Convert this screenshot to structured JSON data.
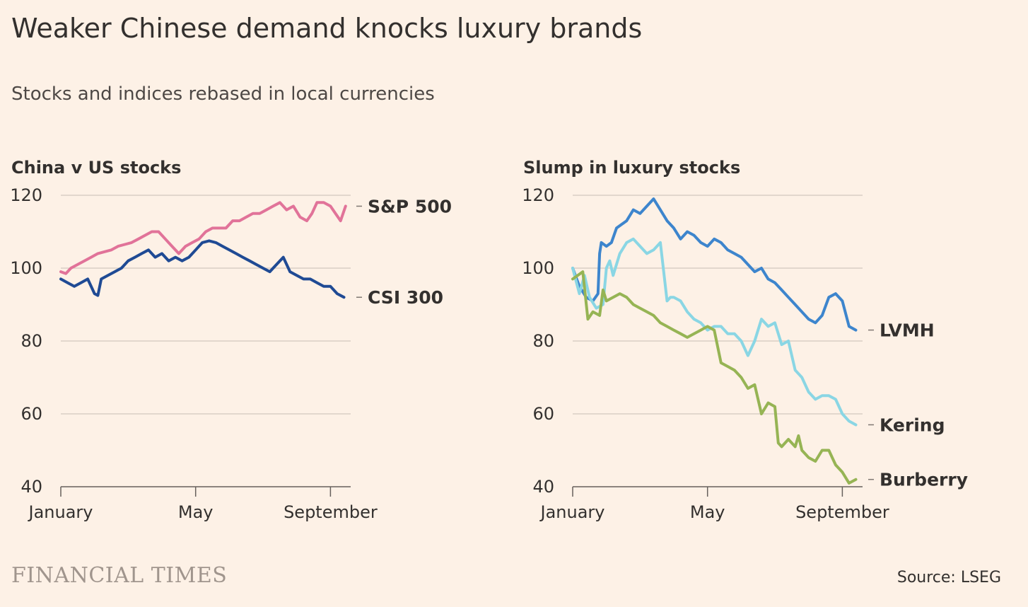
{
  "title": "Weaker Chinese demand knocks luxury brands",
  "subtitle": "Stocks and indices rebased in local currencies",
  "source": "Source: LSEG",
  "logo_text": "FINANCIAL TIMES",
  "colors": {
    "background": "#fdf1e6",
    "grid": "#d2c8be",
    "text": "#33302e",
    "sp500": "#e17399",
    "csi300": "#1f4a94",
    "lvmh": "#3d85cd",
    "kering": "#8ad6e4",
    "burberry": "#96b454"
  },
  "chart_data": [
    {
      "type": "line",
      "title": "China v US stocks",
      "ylim": [
        40,
        120
      ],
      "yticks": [
        120,
        100,
        80,
        60,
        40
      ],
      "xlim": [
        0,
        8.6
      ],
      "xticks": [
        {
          "value": 0,
          "label": "January"
        },
        {
          "value": 4,
          "label": "May"
        },
        {
          "value": 8,
          "label": "September"
        }
      ],
      "grid": true,
      "legend": "direct labels at line ends",
      "series": [
        {
          "name": "S&P 500",
          "color": "#e17399",
          "x": [
            0,
            0.15,
            0.3,
            0.5,
            0.7,
            0.9,
            1.1,
            1.3,
            1.5,
            1.7,
            1.9,
            2.1,
            2.3,
            2.5,
            2.7,
            2.9,
            3.1,
            3.3,
            3.5,
            3.7,
            3.9,
            4.1,
            4.3,
            4.5,
            4.7,
            4.9,
            5.1,
            5.3,
            5.5,
            5.7,
            5.9,
            6.1,
            6.3,
            6.5,
            6.7,
            6.9,
            7.1,
            7.3,
            7.45,
            7.6,
            7.8,
            8.0,
            8.15,
            8.3,
            8.45
          ],
          "y": [
            99,
            98.5,
            100,
            101,
            102,
            103,
            104,
            104.5,
            105,
            106,
            106.5,
            107,
            108,
            109,
            110,
            110,
            108,
            106,
            104,
            106,
            107,
            108,
            110,
            111,
            111,
            111,
            113,
            113,
            114,
            115,
            115,
            116,
            117,
            118,
            116,
            117,
            114,
            113,
            115,
            118,
            118,
            117,
            115,
            113,
            117
          ]
        },
        {
          "name": "CSI 300",
          "color": "#1f4a94",
          "x": [
            0,
            0.2,
            0.4,
            0.6,
            0.8,
            1.0,
            1.1,
            1.2,
            1.4,
            1.6,
            1.8,
            2.0,
            2.2,
            2.4,
            2.6,
            2.8,
            3.0,
            3.2,
            3.4,
            3.6,
            3.8,
            4.0,
            4.2,
            4.4,
            4.6,
            4.8,
            5.0,
            5.2,
            5.4,
            5.6,
            5.8,
            6.0,
            6.2,
            6.4,
            6.6,
            6.8,
            7.0,
            7.2,
            7.4,
            7.6,
            7.8,
            8.0,
            8.2,
            8.4
          ],
          "y": [
            97,
            96,
            95,
            96,
            97,
            93,
            92.5,
            97,
            98,
            99,
            100,
            102,
            103,
            104,
            105,
            103,
            104,
            102,
            103,
            102,
            103,
            105,
            107,
            107.5,
            107,
            106,
            105,
            104,
            103,
            102,
            101,
            100,
            99,
            101,
            103,
            99,
            98,
            97,
            97,
            96,
            95,
            95,
            93,
            92
          ]
        }
      ]
    },
    {
      "type": "line",
      "title": "Slump in luxury stocks",
      "ylim": [
        40,
        120
      ],
      "yticks": [
        120,
        100,
        80,
        60,
        40
      ],
      "xlim": [
        0,
        8.6
      ],
      "xticks": [
        {
          "value": 0,
          "label": "January"
        },
        {
          "value": 4,
          "label": "May"
        },
        {
          "value": 8,
          "label": "September"
        }
      ],
      "grid": true,
      "legend": "direct labels at line ends",
      "series": [
        {
          "name": "LVMH",
          "color": "#3d85cd",
          "x": [
            0,
            0.2,
            0.4,
            0.6,
            0.75,
            0.8,
            0.85,
            1.0,
            1.15,
            1.3,
            1.45,
            1.6,
            1.8,
            2.0,
            2.2,
            2.4,
            2.6,
            2.8,
            3.0,
            3.2,
            3.4,
            3.6,
            3.8,
            4.0,
            4.2,
            4.4,
            4.6,
            4.8,
            5.0,
            5.2,
            5.4,
            5.6,
            5.8,
            6.0,
            6.2,
            6.4,
            6.6,
            6.8,
            7.0,
            7.2,
            7.4,
            7.6,
            7.8,
            8.0,
            8.2,
            8.4
          ],
          "y": [
            100,
            95,
            92,
            91,
            93,
            104,
            107,
            106,
            107,
            111,
            112,
            113,
            116,
            115,
            117,
            119,
            116,
            113,
            111,
            108,
            110,
            109,
            107,
            106,
            108,
            107,
            105,
            104,
            103,
            101,
            99,
            100,
            97,
            96,
            94,
            92,
            90,
            88,
            86,
            85,
            87,
            92,
            93,
            91,
            84,
            83
          ]
        },
        {
          "name": "Kering",
          "color": "#8ad6e4",
          "x": [
            0,
            0.2,
            0.35,
            0.5,
            0.7,
            0.9,
            1.0,
            1.1,
            1.2,
            1.4,
            1.6,
            1.8,
            2.0,
            2.2,
            2.4,
            2.6,
            2.8,
            2.9,
            3.0,
            3.2,
            3.4,
            3.6,
            3.8,
            4.0,
            4.2,
            4.4,
            4.6,
            4.8,
            5.0,
            5.2,
            5.4,
            5.6,
            5.8,
            6.0,
            6.2,
            6.4,
            6.6,
            6.8,
            7.0,
            7.2,
            7.4,
            7.6,
            7.8,
            8.0,
            8.2,
            8.4
          ],
          "y": [
            100,
            93,
            98,
            92,
            89,
            90,
            100,
            102,
            98,
            104,
            107,
            108,
            106,
            104,
            105,
            107,
            91,
            92,
            92,
            91,
            88,
            86,
            85,
            83,
            84,
            84,
            82,
            82,
            80,
            76,
            80,
            86,
            84,
            85,
            79,
            80,
            72,
            70,
            66,
            64,
            65,
            65,
            64,
            60,
            58,
            57
          ]
        },
        {
          "name": "Burberry",
          "color": "#96b454",
          "x": [
            0,
            0.15,
            0.3,
            0.45,
            0.6,
            0.8,
            0.9,
            1.0,
            1.2,
            1.4,
            1.6,
            1.8,
            2.0,
            2.2,
            2.4,
            2.6,
            2.8,
            3.0,
            3.2,
            3.4,
            3.6,
            3.8,
            4.0,
            4.2,
            4.4,
            4.6,
            4.8,
            5.0,
            5.2,
            5.4,
            5.6,
            5.8,
            6.0,
            6.1,
            6.2,
            6.4,
            6.6,
            6.7,
            6.8,
            7.0,
            7.2,
            7.4,
            7.6,
            7.8,
            8.0,
            8.2,
            8.4
          ],
          "y": [
            97,
            98,
            99,
            86,
            88,
            87,
            94,
            91,
            92,
            93,
            92,
            90,
            89,
            88,
            87,
            85,
            84,
            83,
            82,
            81,
            82,
            83,
            84,
            83,
            74,
            73,
            72,
            70,
            67,
            68,
            60,
            63,
            62,
            52,
            51,
            53,
            51,
            54,
            50,
            48,
            47,
            50,
            50,
            46,
            44,
            41,
            42
          ]
        }
      ]
    }
  ]
}
